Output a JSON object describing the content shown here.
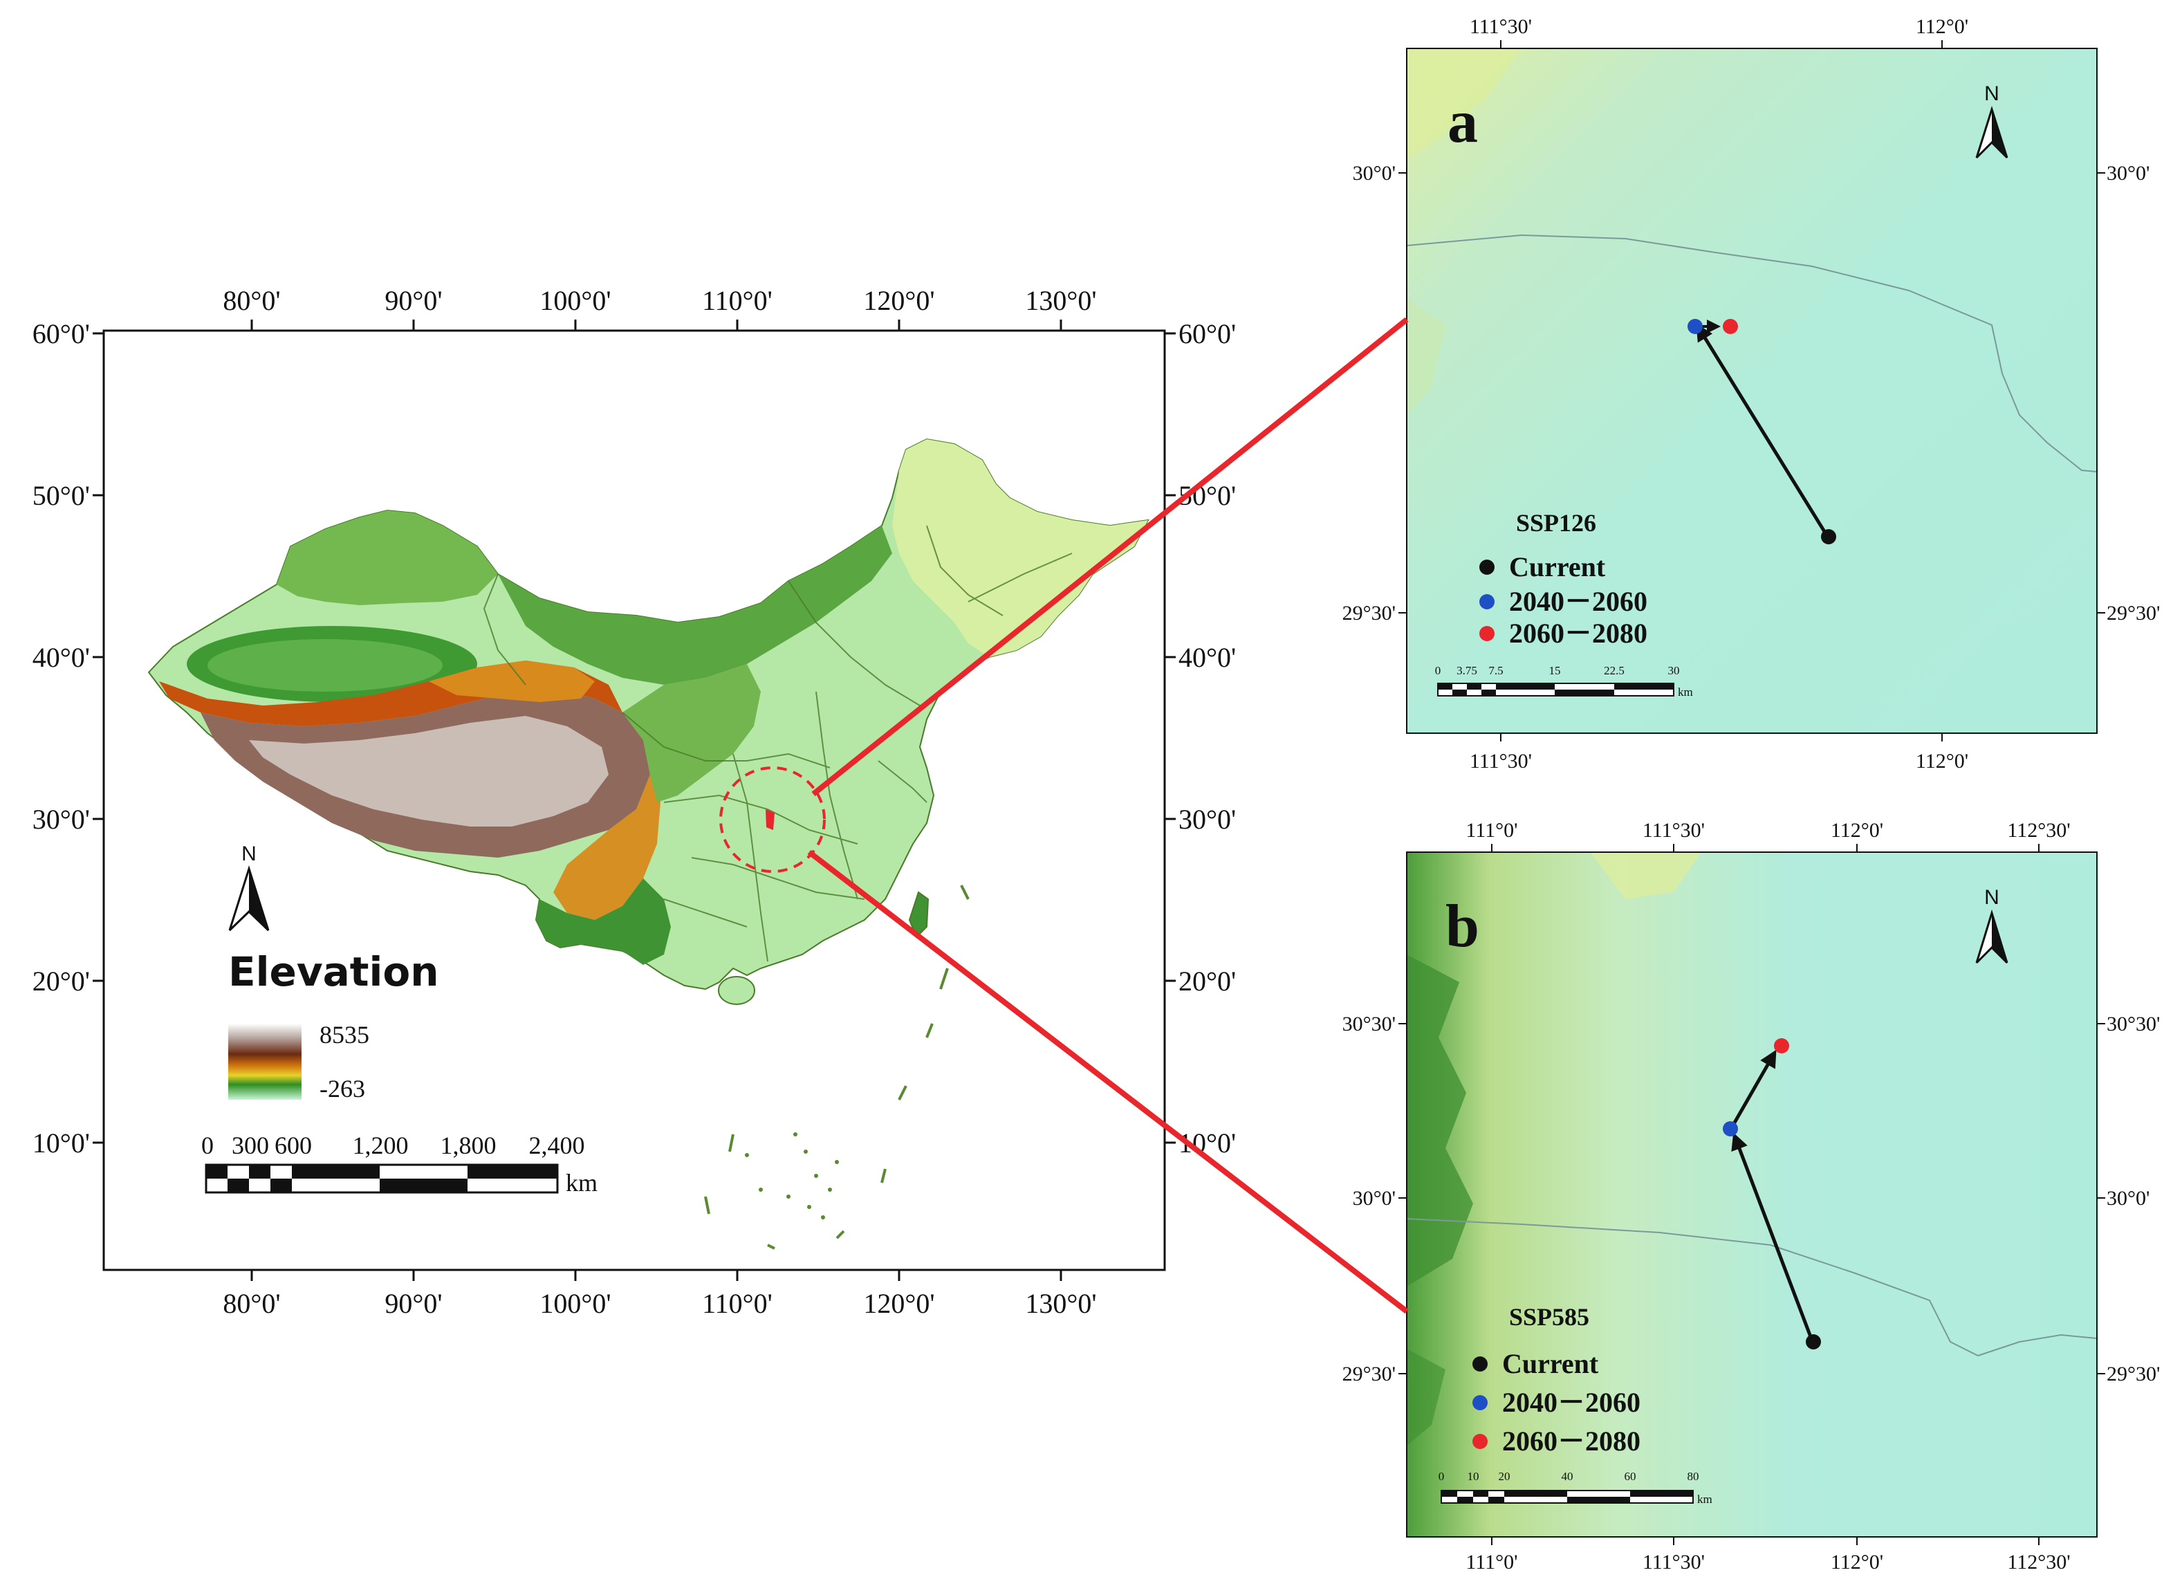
{
  "main_map": {
    "legend": {
      "title": "Elevation",
      "max": "8535",
      "min": "-263"
    },
    "scale_bar": {
      "labels": [
        "0",
        "300",
        "600",
        "1,200",
        "1,800",
        "2,400"
      ],
      "unit": "km"
    },
    "north": "N",
    "top_ticks": [
      "80°0'",
      "90°0'",
      "100°0'",
      "110°0'",
      "120°0'",
      "130°0'"
    ],
    "bottom_ticks": [
      "80°0'",
      "90°0'",
      "100°0'",
      "110°0'",
      "120°0'",
      "130°0'"
    ],
    "left_ticks": [
      "60°0'",
      "50°0'",
      "40°0'",
      "30°0'",
      "20°0'",
      "10°0'"
    ],
    "right_ticks": [
      "60°0'",
      "50°0'",
      "40°0'",
      "30°0'",
      "20°0'",
      "10°0'"
    ]
  },
  "panel_a": {
    "letter": "a",
    "north": "N",
    "scenario": "SSP126",
    "legend": [
      {
        "label": "Current",
        "color": "#111111"
      },
      {
        "label": "2040－2060",
        "color": "#1f4fc4"
      },
      {
        "label": "2060－2080",
        "color": "#e8262b"
      }
    ],
    "scale_bar": {
      "labels": [
        "0",
        "3.75",
        "7.5",
        "15",
        "22.5",
        "30"
      ],
      "unit": "km"
    },
    "top_ticks": [
      "111°30'",
      "112°0'"
    ],
    "bottom_ticks": [
      "111°30'",
      "112°0'"
    ],
    "left_ticks": [
      "30°0'",
      "29°30'"
    ],
    "right_ticks": [
      "30°0'",
      "29°30'"
    ]
  },
  "panel_b": {
    "letter": "b",
    "north": "N",
    "scenario": "SSP585",
    "legend": [
      {
        "label": "Current",
        "color": "#111111"
      },
      {
        "label": "2040－2060",
        "color": "#1f4fc4"
      },
      {
        "label": "2060－2080",
        "color": "#e8262b"
      }
    ],
    "scale_bar": {
      "labels": [
        "0",
        "10",
        "20",
        "40",
        "60",
        "80"
      ],
      "unit": "km"
    },
    "top_ticks": [
      "111°0'",
      "111°30'",
      "112°0'",
      "112°30'"
    ],
    "bottom_ticks": [
      "111°0'",
      "111°30'",
      "112°0'",
      "112°30'"
    ],
    "left_ticks": [
      "30°30'",
      "30°0'",
      "29°30'"
    ],
    "right_ticks": [
      "30°30'",
      "30°0'",
      "29°30'"
    ]
  }
}
